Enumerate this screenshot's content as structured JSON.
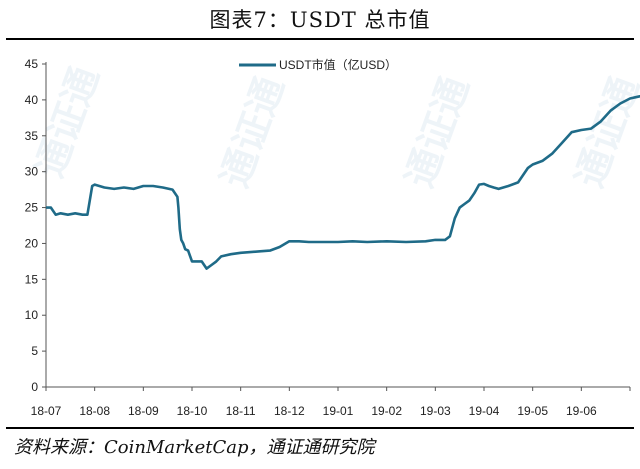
{
  "header": {
    "title": "图表7：USDT 总市值"
  },
  "footer": {
    "source": "资料来源：CoinMarketCap，通证通研究院"
  },
  "chart_data": {
    "type": "line",
    "title": "图表7：USDT 总市值",
    "xlabel": "",
    "ylabel": "",
    "ylim": [
      0,
      45
    ],
    "yticks": [
      0,
      5,
      10,
      15,
      20,
      25,
      30,
      35,
      40,
      45
    ],
    "xticks": [
      "18-07",
      "18-08",
      "18-09",
      "18-10",
      "18-11",
      "18-12",
      "19-01",
      "19-02",
      "19-03",
      "19-04",
      "19-05",
      "19-06"
    ],
    "legend": "top-center",
    "grid": false,
    "line_color": "#1f6b88",
    "series": [
      {
        "name": "USDT市值（亿USD）",
        "x": [
          0,
          0.1,
          0.2,
          0.3,
          0.45,
          0.6,
          0.75,
          0.85,
          0.95,
          1.0,
          1.2,
          1.4,
          1.6,
          1.8,
          2.0,
          2.2,
          2.4,
          2.6,
          2.7,
          2.72,
          2.75,
          2.78,
          2.82,
          2.86,
          2.92,
          3.0,
          3.1,
          3.2,
          3.3,
          3.4,
          3.5,
          3.6,
          3.8,
          4.0,
          4.2,
          4.4,
          4.6,
          4.8,
          5.0,
          5.2,
          5.4,
          5.6,
          5.8,
          6.0,
          6.3,
          6.6,
          7.0,
          7.4,
          7.8,
          8.0,
          8.2,
          8.3,
          8.4,
          8.5,
          8.6,
          8.7,
          8.8,
          8.9,
          9.0,
          9.1,
          9.2,
          9.3,
          9.5,
          9.7,
          9.9,
          10.0,
          10.2,
          10.4,
          10.6,
          10.8,
          11.0,
          11.2,
          11.4,
          11.6,
          11.8,
          12.0,
          12.2,
          12.35
        ],
        "values": [
          25,
          25,
          24,
          24.2,
          24,
          24.2,
          24,
          24,
          28,
          28.2,
          27.8,
          27.6,
          27.8,
          27.6,
          28,
          28,
          27.8,
          27.5,
          26.5,
          25,
          22,
          20.5,
          20,
          19.2,
          19,
          17.5,
          17.5,
          17.5,
          16.5,
          17,
          17.5,
          18.2,
          18.5,
          18.7,
          18.8,
          18.9,
          19,
          19.5,
          20.3,
          20.3,
          20.2,
          20.2,
          20.2,
          20.2,
          20.3,
          20.2,
          20.3,
          20.2,
          20.3,
          20.5,
          20.5,
          21,
          23.5,
          25,
          25.5,
          26,
          27,
          28.2,
          28.3,
          28,
          27.8,
          27.6,
          28,
          28.5,
          30.5,
          31,
          31.5,
          32.5,
          34,
          35.5,
          35.8,
          36,
          37,
          38.5,
          39.5,
          40.2,
          40.5,
          40.5
        ]
      }
    ]
  }
}
